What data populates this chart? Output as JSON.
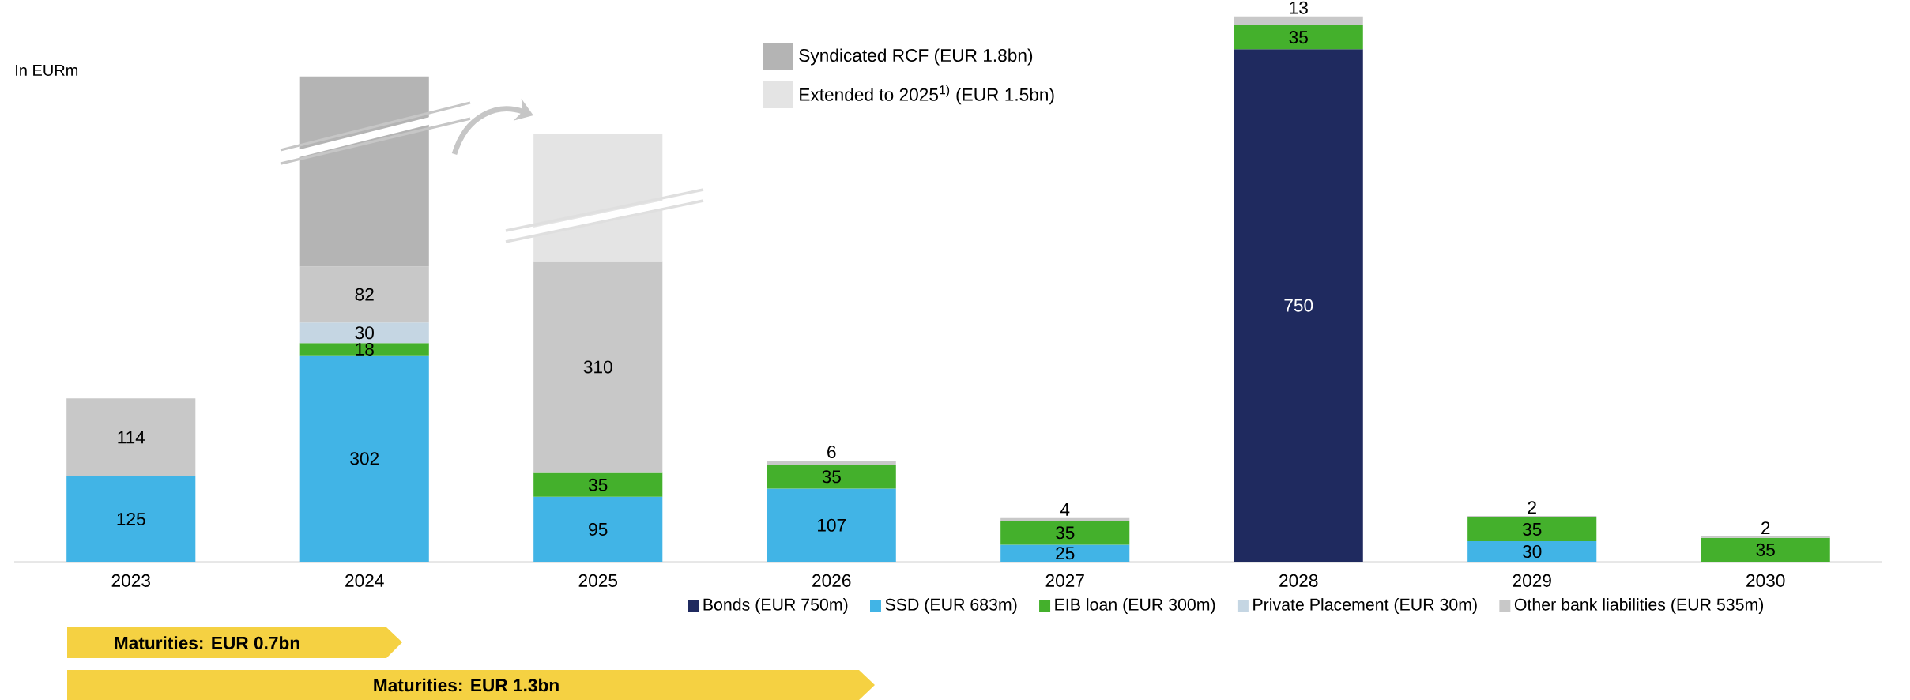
{
  "chart_data": {
    "type": "bar",
    "stacked": true,
    "legend": "bottom",
    "categories": [
      "2023",
      "2024",
      "2025",
      "2026",
      "2027",
      "2028",
      "2029",
      "2030"
    ],
    "series": [
      {
        "name": "Bonds (EUR 750m)",
        "color": "#1f2a5f",
        "values": [
          null,
          null,
          null,
          null,
          null,
          750,
          null,
          null
        ],
        "value_labels": [
          null,
          null,
          null,
          null,
          null,
          "750",
          null,
          null
        ]
      },
      {
        "name": "SSD (EUR 683m)",
        "color": "#41b4e6",
        "values": [
          125,
          302,
          95,
          107,
          25,
          null,
          30,
          null
        ],
        "value_labels": [
          "125",
          "302",
          "95",
          "107",
          "25",
          null,
          "30",
          null
        ]
      },
      {
        "name": "EIB loan (EUR 300m)",
        "color": "#44b02c",
        "values": [
          null,
          18,
          35,
          35,
          35,
          35,
          35,
          35
        ],
        "value_labels": [
          null,
          "18",
          "35",
          "35",
          "35",
          "35",
          "35",
          "35"
        ]
      },
      {
        "name": "Private Placement (EUR 30m)",
        "color": "#c5d6e3",
        "values": [
          null,
          30,
          null,
          null,
          null,
          null,
          null,
          null
        ],
        "value_labels": [
          null,
          "30",
          null,
          null,
          null,
          null,
          null,
          null
        ]
      },
      {
        "name": "Other bank liabilities (EUR 535m)",
        "color": "#c8c8c8",
        "values": [
          114,
          82,
          310,
          6,
          4,
          13,
          2,
          2
        ],
        "value_labels": [
          "114",
          "82",
          "310",
          "6",
          "4",
          "13",
          "2",
          "2"
        ]
      },
      {
        "name": "Syndicated RCF (EUR 1.8bn)",
        "color": "#b4b4b4",
        "values": [
          null,
          278,
          null,
          null,
          null,
          null,
          null,
          null
        ]
      },
      {
        "name": "Extended to 2025$^{1)}$ (EUR 1.5bn)",
        "color": "#e4e4e4",
        "values": [
          null,
          null,
          186,
          null,
          null,
          null,
          null,
          null
        ]
      }
    ],
    "annotations": [
      "In EURm",
      "Maturities: EUR 0.7bn",
      "Maturities: EUR 1.3bn"
    ]
  }
}
